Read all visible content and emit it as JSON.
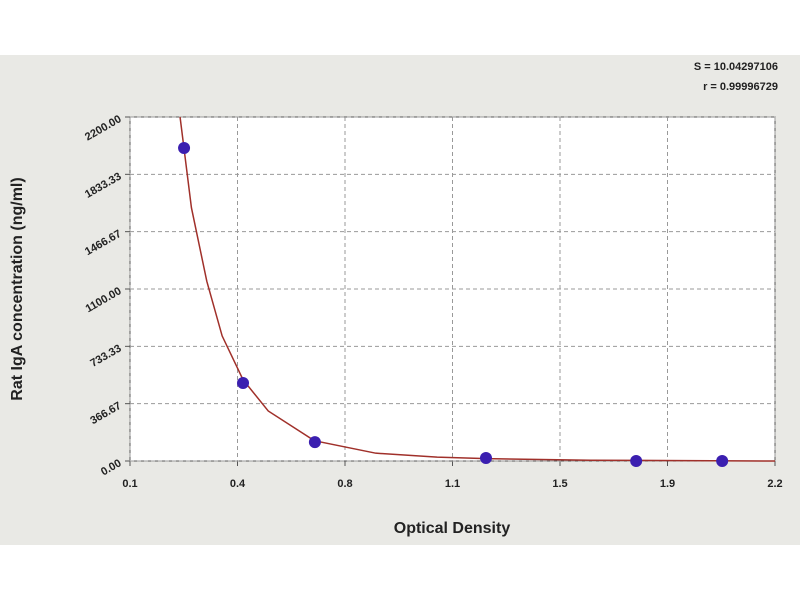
{
  "chart_data": {
    "type": "scatter",
    "annotations": [
      "S = 10.04297106",
      "r = 0.99996729"
    ],
    "x_label": "Optical Density",
    "y_label": "Rat IgA concentration (ng/ml)",
    "xlim": [
      0.1,
      2.2
    ],
    "ylim": [
      0,
      2200
    ],
    "xticks": [
      0.1,
      {
        "value": 0.45,
        "label": "0.4"
      },
      0.8,
      {
        "value": 1.15,
        "label": "1.1"
      },
      1.5,
      {
        "value": 1.85,
        "label": "1.9"
      },
      2.2
    ],
    "yticks": [
      {
        "value": 0,
        "label": "0.00"
      },
      {
        "value": 366.67,
        "label": "366.67"
      },
      {
        "value": 733.33,
        "label": "733.33"
      },
      {
        "value": 1100,
        "label": "1100.00"
      },
      {
        "value": 1466.67,
        "label": "1466.67"
      },
      {
        "value": 1833.33,
        "label": "1833.33"
      },
      {
        "value": 2200,
        "label": "2200.00"
      }
    ],
    "grid": true,
    "points": {
      "color": "#3b1fb0",
      "x": [
        0.276,
        0.468,
        0.702,
        1.259,
        1.748,
        2.028
      ],
      "values": [
        2002,
        499,
        121,
        19,
        0,
        0
      ]
    },
    "fit": {
      "color": "#a0302a",
      "x": [
        0.263,
        0.3,
        0.35,
        0.4,
        0.468,
        0.55,
        0.7,
        0.9,
        1.1,
        1.26,
        1.6,
        2.2
      ],
      "values": [
        2200,
        1620,
        1150,
        800,
        520,
        320,
        130,
        50,
        25,
        15,
        5,
        0
      ]
    }
  }
}
